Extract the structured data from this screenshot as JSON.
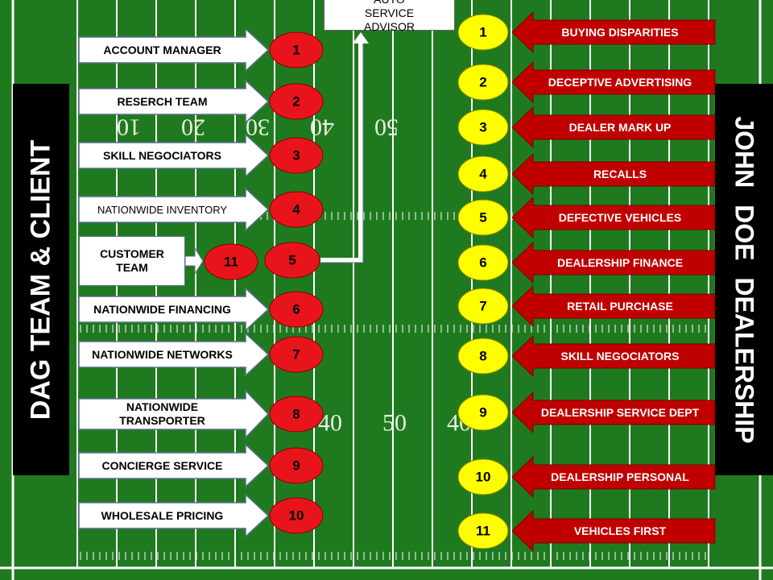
{
  "left_panel": {
    "title": "DAG TEAM & CLIENT"
  },
  "right_panel": {
    "title": "JOHN DOE DEALERSHIP"
  },
  "top_box": {
    "label": "AUTO SERVICE ADVISOR",
    "number": 5
  },
  "left_rows": [
    {
      "label": "ACCOUNT MANAGER",
      "number": 1
    },
    {
      "label": "RESERCH TEAM",
      "number": 2
    },
    {
      "label": "SKILL NEGOCIATORS",
      "number": 3
    },
    {
      "label": "NATIONWIDE INVENTORY",
      "number": 4
    },
    {
      "label": "CUSTOMER TEAM",
      "number": 11
    },
    {
      "label": "NATIONWIDE FINANCING",
      "number": 6
    },
    {
      "label": "NATIONWIDE NETWORKS",
      "number": 7
    },
    {
      "label": "NATIONWIDE TRANSPORTER",
      "number": 8
    },
    {
      "label": "CONCIERGE SERVICE",
      "number": 9
    },
    {
      "label": "WHOLESALE PRICING",
      "number": 10
    }
  ],
  "right_rows": [
    {
      "label": "BUYING DISPARITIES",
      "number": 1
    },
    {
      "label": "DECEPTIVE ADVERTISING",
      "number": 2
    },
    {
      "label": "DEALER MARK UP",
      "number": 3
    },
    {
      "label": "RECALLS",
      "number": 4
    },
    {
      "label": "DEFECTIVE VEHICLES",
      "number": 5
    },
    {
      "label": "DEALERSHIP FINANCE",
      "number": 6
    },
    {
      "label": "RETAIL PURCHASE",
      "number": 7
    },
    {
      "label": "SKILL NEGOCIATORS",
      "number": 8
    },
    {
      "label": "DEALERSHIP SERVICE DEPT",
      "number": 9
    },
    {
      "label": "DEALERSHIP PERSONAL",
      "number": 10
    },
    {
      "label": "VEHICLES FIRST",
      "number": 11
    }
  ],
  "field_markings": {
    "top": [
      "10",
      "20",
      "30",
      "40",
      "50"
    ],
    "bottom": [
      "40",
      "50",
      "40"
    ]
  }
}
